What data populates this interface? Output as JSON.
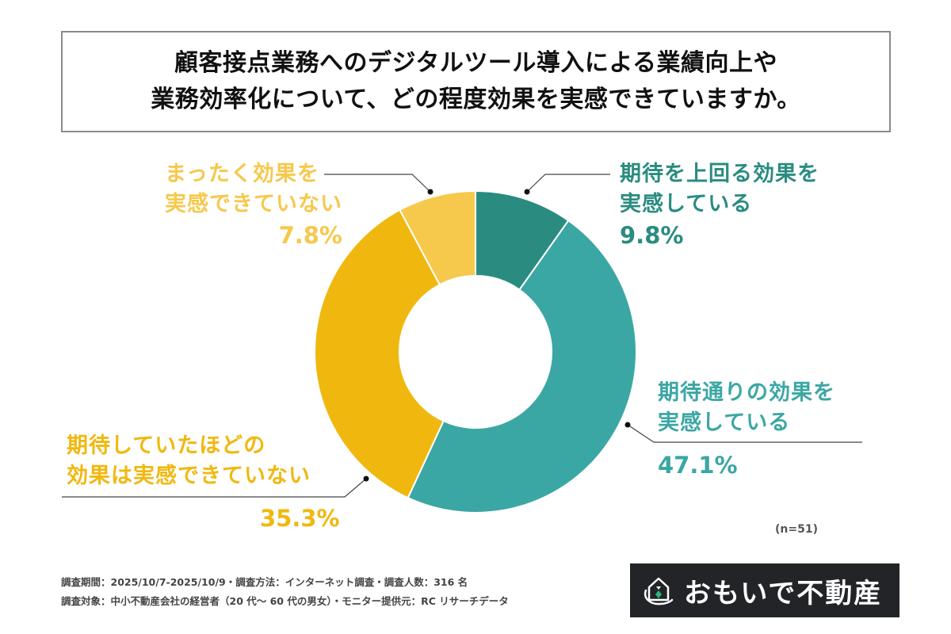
{
  "title": {
    "line1": "顧客接点業務へのデジタルツール導入による業績向上や",
    "line2": "業務効率化について、どの程度効果を実感できていますか。"
  },
  "labels": {
    "exceed": {
      "line1": "期待を上回る効果を",
      "line2": "実感している",
      "pct": "9.8%",
      "color": "#2a8c80"
    },
    "asexpected": {
      "line1": "期待通りの効果を",
      "line2": "実感している",
      "pct": "47.1%",
      "color": "#3ba7a4"
    },
    "notasexpected": {
      "line1": "期待していたほどの",
      "line2": "効果は実感できていない",
      "pct": "35.3%",
      "color": "#f0b80f"
    },
    "none": {
      "line1": "まったく効果を",
      "line2": "実感できていない",
      "pct": "7.8%",
      "color": "#f6c84c"
    }
  },
  "sample_size": "(n=51)",
  "footer": {
    "line1": "調査期間：2025/10/7-2025/10/9・調査方法：インターネット調査・調査人数：316 名",
    "line2": "調査対象：中小不動産会社の経営者（20 代～ 60 代の男女）・モニター提供元：RC リサーチデータ"
  },
  "logo": {
    "text": "おもいで不動産",
    "icon": "house-icon"
  },
  "chart_data": {
    "type": "pie",
    "variant": "donut",
    "title": "顧客接点業務へのデジタルツール導入による業績向上や業務効率化について、どの程度効果を実感できていますか。",
    "categories": [
      "期待を上回る効果を実感している",
      "期待通りの効果を実感している",
      "期待していたほどの効果は実感できていない",
      "まったく効果を実感できていない"
    ],
    "values": [
      9.8,
      47.1,
      35.3,
      7.8
    ],
    "unit": "%",
    "colors": [
      "#2a8c80",
      "#3ba7a4",
      "#f0b80f",
      "#f6c84c"
    ],
    "start_angle": "12 o'clock",
    "direction": "clockwise",
    "n": 51,
    "legend": "callout labels"
  }
}
